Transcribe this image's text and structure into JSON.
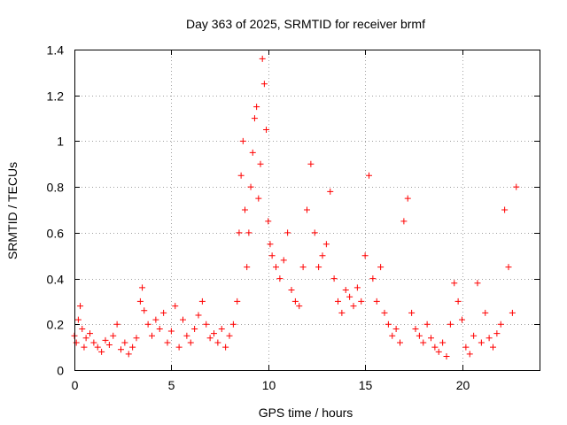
{
  "chart_data": {
    "type": "scatter",
    "title": "Day 363 of 2025, SRMTID for receiver brmf",
    "xlabel": "GPS time / hours",
    "ylabel": "SRMTID / TECUs",
    "xlim": [
      0,
      24
    ],
    "ylim": [
      0,
      1.4
    ],
    "xticks": [
      0,
      5,
      10,
      15,
      20
    ],
    "yticks": [
      0,
      0.2,
      0.4,
      0.6,
      0.8,
      1,
      1.2,
      1.4
    ],
    "xtick_labels": [
      "0",
      "5",
      "10",
      "15",
      "20"
    ],
    "ytick_labels": [
      "0",
      "0.2",
      "0.4",
      "0.6",
      "0.8",
      "1",
      "1.2",
      "1.4"
    ],
    "grid": true,
    "marker": "plus",
    "marker_color": "#ff0000",
    "series": [
      {
        "name": "SRMTID",
        "x": [
          0.0,
          0.1,
          0.2,
          0.3,
          0.4,
          0.5,
          0.6,
          0.8,
          1.0,
          1.2,
          1.4,
          1.6,
          1.8,
          2.0,
          2.2,
          2.4,
          2.6,
          2.8,
          3.0,
          3.2,
          3.4,
          3.5,
          3.6,
          3.8,
          4.0,
          4.2,
          4.4,
          4.6,
          4.8,
          5.0,
          5.2,
          5.4,
          5.6,
          5.8,
          6.0,
          6.2,
          6.4,
          6.6,
          6.8,
          7.0,
          7.2,
          7.4,
          7.6,
          7.8,
          8.0,
          8.2,
          8.4,
          8.5,
          8.6,
          8.7,
          8.8,
          8.9,
          9.0,
          9.1,
          9.2,
          9.3,
          9.4,
          9.5,
          9.6,
          9.7,
          9.8,
          9.9,
          10.0,
          10.1,
          10.2,
          10.4,
          10.6,
          10.8,
          11.0,
          11.2,
          11.4,
          11.6,
          11.8,
          12.0,
          12.2,
          12.4,
          12.6,
          12.8,
          13.0,
          13.2,
          13.4,
          13.6,
          13.8,
          14.0,
          14.2,
          14.4,
          14.6,
          14.8,
          15.0,
          15.2,
          15.4,
          15.6,
          15.8,
          16.0,
          16.2,
          16.4,
          16.6,
          16.8,
          17.0,
          17.2,
          17.4,
          17.6,
          17.8,
          18.0,
          18.2,
          18.4,
          18.6,
          18.8,
          19.0,
          19.2,
          19.4,
          19.6,
          19.8,
          20.0,
          20.2,
          20.4,
          20.6,
          20.8,
          21.0,
          21.2,
          21.4,
          21.6,
          21.8,
          22.0,
          22.2,
          22.4,
          22.6,
          22.8
        ],
        "y": [
          0.15,
          0.12,
          0.22,
          0.28,
          0.18,
          0.1,
          0.14,
          0.16,
          0.12,
          0.1,
          0.08,
          0.13,
          0.11,
          0.15,
          0.2,
          0.09,
          0.12,
          0.07,
          0.1,
          0.14,
          0.3,
          0.36,
          0.26,
          0.2,
          0.15,
          0.22,
          0.18,
          0.25,
          0.12,
          0.17,
          0.28,
          0.1,
          0.22,
          0.15,
          0.12,
          0.18,
          0.24,
          0.3,
          0.2,
          0.14,
          0.16,
          0.12,
          0.18,
          0.1,
          0.15,
          0.2,
          0.3,
          0.6,
          0.85,
          1.0,
          0.7,
          0.45,
          0.6,
          0.8,
          0.95,
          1.1,
          1.15,
          0.75,
          0.9,
          1.36,
          1.25,
          1.05,
          0.65,
          0.55,
          0.5,
          0.45,
          0.4,
          0.48,
          0.6,
          0.35,
          0.3,
          0.28,
          0.45,
          0.7,
          0.9,
          0.6,
          0.45,
          0.5,
          0.55,
          0.78,
          0.4,
          0.3,
          0.25,
          0.35,
          0.32,
          0.28,
          0.36,
          0.3,
          0.5,
          0.85,
          0.4,
          0.3,
          0.45,
          0.25,
          0.2,
          0.15,
          0.18,
          0.12,
          0.65,
          0.75,
          0.25,
          0.18,
          0.15,
          0.12,
          0.2,
          0.14,
          0.1,
          0.08,
          0.12,
          0.06,
          0.2,
          0.38,
          0.3,
          0.22,
          0.1,
          0.07,
          0.15,
          0.38,
          0.12,
          0.25,
          0.14,
          0.1,
          0.16,
          0.2,
          0.7,
          0.45,
          0.25,
          0.8
        ]
      }
    ]
  }
}
